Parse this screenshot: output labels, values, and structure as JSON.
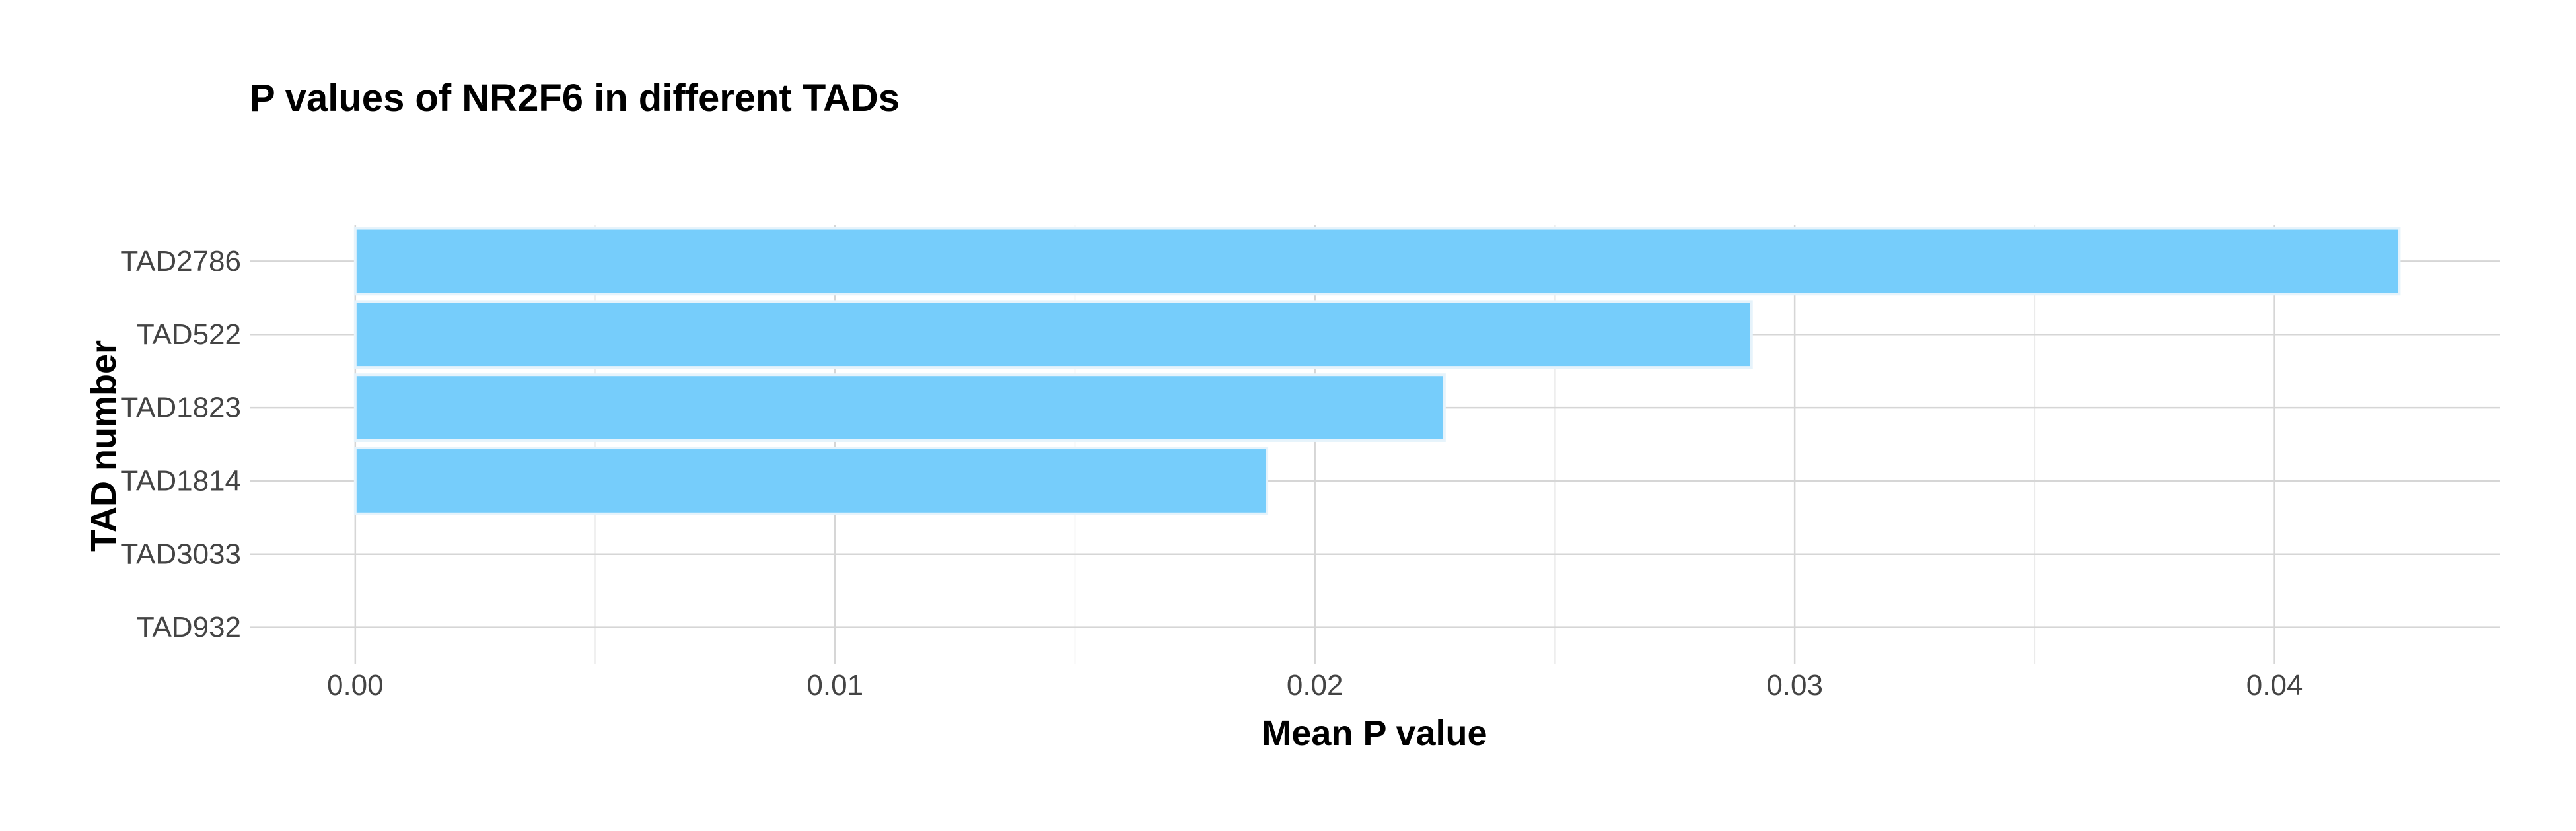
{
  "chart_data": {
    "type": "bar",
    "orientation": "horizontal",
    "title": "P values of NR2F6 in different TADs",
    "xlabel": "Mean P value",
    "ylabel": "TAD number",
    "categories": [
      "TAD2786",
      "TAD522",
      "TAD1823",
      "TAD1814",
      "TAD3033",
      "TAD932"
    ],
    "values": [
      0.0426,
      0.0291,
      0.0227,
      0.019,
      0,
      0
    ],
    "xlim": [
      -0.0022,
      0.0447
    ],
    "x_ticks": [
      0.0,
      0.01,
      0.02,
      0.03,
      0.04
    ],
    "x_tick_labels": [
      "0.00",
      "0.01",
      "0.02",
      "0.03",
      "0.04"
    ],
    "grid": true,
    "legend": "none",
    "colors": {
      "bar_fill": "#76cdfb",
      "bar_stroke": "#e6f3fb"
    }
  }
}
